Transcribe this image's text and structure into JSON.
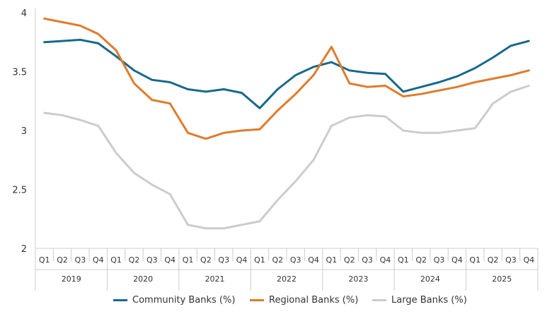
{
  "chart_data": {
    "type": "line",
    "x_quarters": [
      "Q1",
      "Q2",
      "Q3",
      "Q4",
      "Q1",
      "Q2",
      "Q3",
      "Q4",
      "Q1",
      "Q2",
      "Q3",
      "Q4",
      "Q1",
      "Q2",
      "Q3",
      "Q4",
      "Q1",
      "Q2",
      "Q3",
      "Q4",
      "Q1",
      "Q2",
      "Q3",
      "Q4",
      "Q1",
      "Q2",
      "Q3",
      "Q4"
    ],
    "x_years": [
      "2019",
      "2020",
      "2021",
      "2022",
      "2023",
      "2024",
      "2025"
    ],
    "ylim": [
      2,
      4
    ],
    "yticks": [
      "2",
      "2.5",
      "3",
      "3.5",
      "4"
    ],
    "grid": false,
    "legend_position": "bottom",
    "series": [
      {
        "name": "Community Banks (%)",
        "color": "#17698a",
        "values": [
          3.75,
          3.76,
          3.77,
          3.74,
          3.63,
          3.51,
          3.43,
          3.41,
          3.35,
          3.33,
          3.35,
          3.32,
          3.19,
          3.35,
          3.47,
          3.54,
          3.58,
          3.51,
          3.49,
          3.48,
          3.33,
          3.37,
          3.41,
          3.46,
          3.53,
          3.62,
          3.72,
          3.76
        ]
      },
      {
        "name": "Regional Banks (%)",
        "color": "#e07b2a",
        "values": [
          3.95,
          3.92,
          3.89,
          3.82,
          3.68,
          3.4,
          3.26,
          3.23,
          2.98,
          2.93,
          2.98,
          3.0,
          3.01,
          3.17,
          3.31,
          3.47,
          3.71,
          3.4,
          3.37,
          3.38,
          3.29,
          3.31,
          3.34,
          3.37,
          3.41,
          3.44,
          3.47,
          3.51
        ]
      },
      {
        "name": "Large Banks (%)",
        "color": "#cccccc",
        "values": [
          3.15,
          3.13,
          3.09,
          3.04,
          2.81,
          2.64,
          2.54,
          2.46,
          2.2,
          2.17,
          2.17,
          2.2,
          2.23,
          2.41,
          2.57,
          2.75,
          3.04,
          3.11,
          3.13,
          3.12,
          3.0,
          2.98,
          2.98,
          3.0,
          3.02,
          3.23,
          3.33,
          3.38
        ]
      }
    ]
  }
}
